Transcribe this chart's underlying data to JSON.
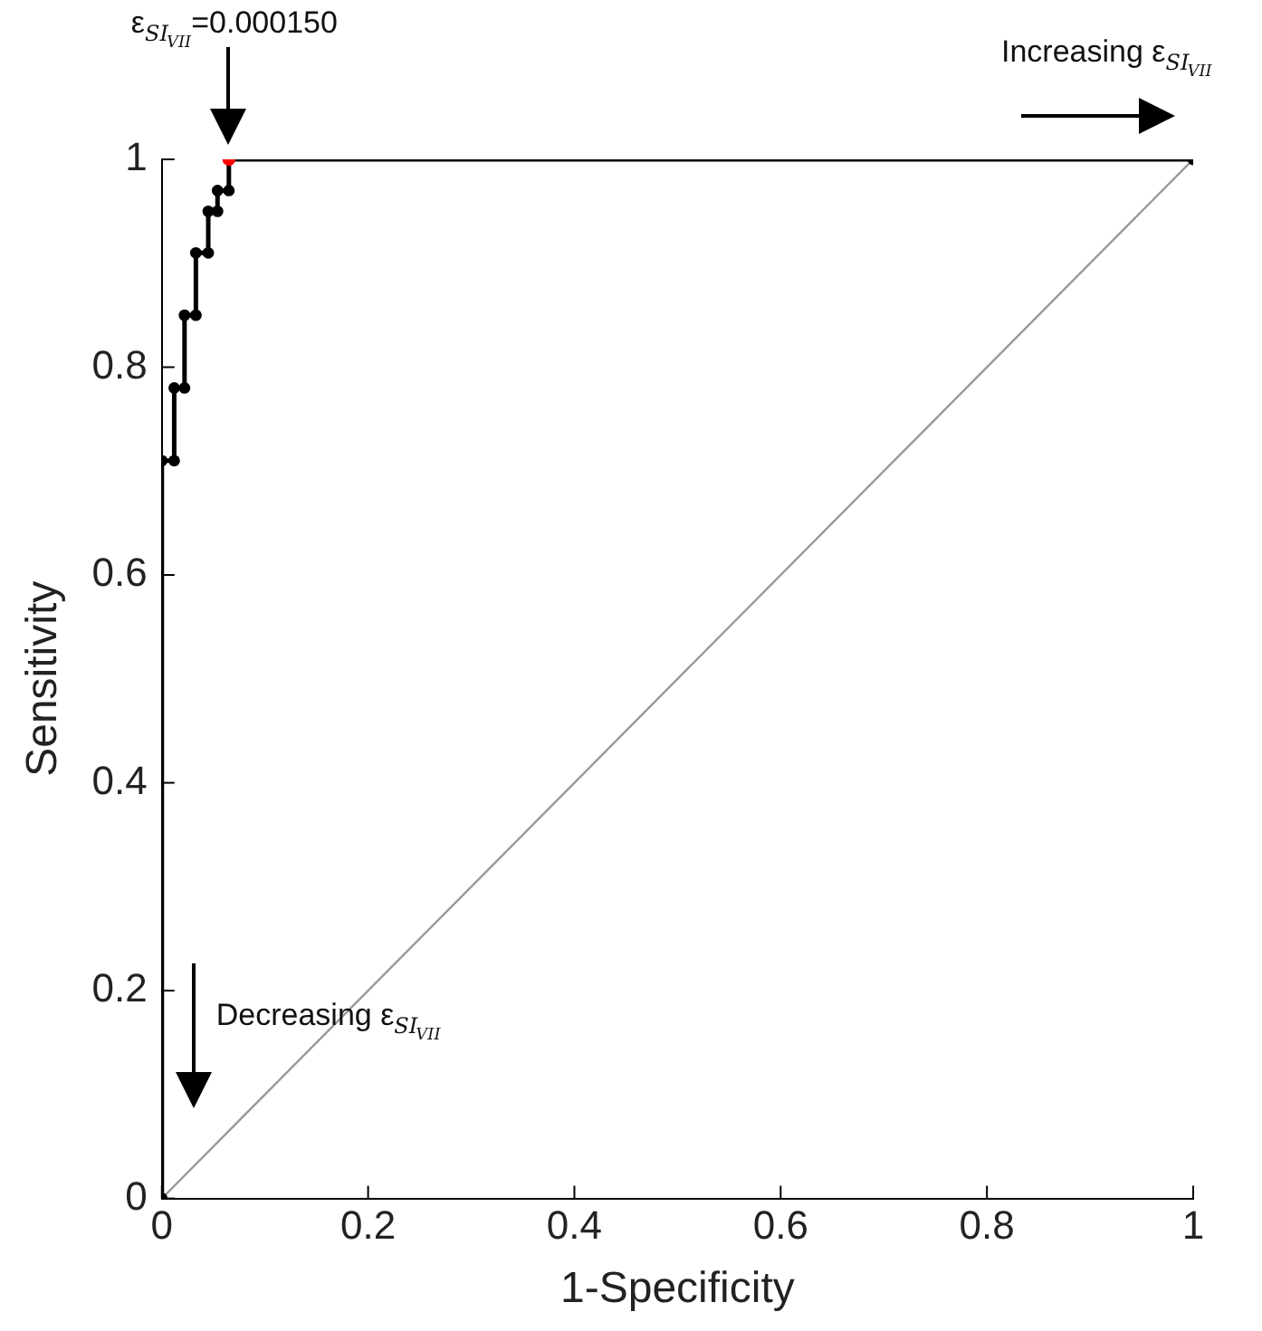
{
  "chart_data": {
    "type": "line",
    "xlabel": "1-Specificity",
    "ylabel": "Sensitivity",
    "xlim": [
      0,
      1
    ],
    "ylim": [
      0,
      1
    ],
    "xticks": [
      0,
      0.2,
      0.4,
      0.6,
      0.8,
      1
    ],
    "yticks": [
      0,
      0.2,
      0.4,
      0.6,
      0.8,
      1
    ],
    "grid": false,
    "legend": false,
    "series": [
      {
        "x": [
          0,
          1
        ],
        "values": [
          0,
          1
        ],
        "color": "#999999",
        "marker": "none"
      },
      {
        "x": [
          0,
          0,
          0.012,
          0.012,
          0.022,
          0.022,
          0.033,
          0.033,
          0.045,
          0.045,
          0.054,
          0.054,
          0.065,
          0.065,
          1
        ],
        "values": [
          0,
          0.71,
          0.71,
          0.78,
          0.78,
          0.85,
          0.85,
          0.91,
          0.91,
          0.95,
          0.95,
          0.97,
          0.97,
          1,
          1
        ],
        "color": "#000000",
        "marker": "circle"
      },
      {
        "type": "scatter",
        "x": [
          0.065
        ],
        "values": [
          1
        ],
        "color": "#ff0000",
        "marker": "circle"
      }
    ],
    "annotations": [
      "ε$_{SI}$$_{VII}$=0.000150",
      "Increasing ε$_{SI}$$_{VII}$",
      "Decreasing ε$_{SI}$$_{VII}$"
    ]
  }
}
